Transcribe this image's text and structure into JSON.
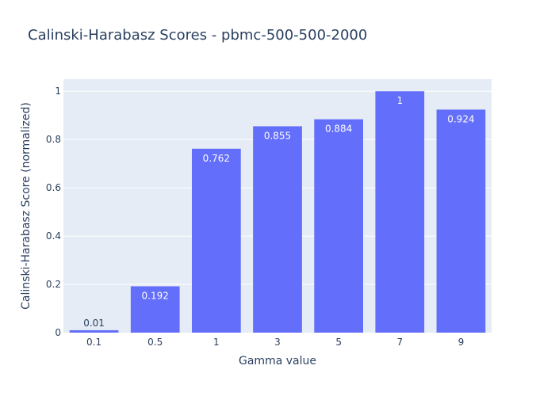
{
  "chart_data": {
    "type": "bar",
    "title": "Calinski-Harabasz Scores - pbmc-500-500-2000",
    "xlabel": "Gamma value",
    "ylabel": "Calinski-Harabasz Score (normalized)",
    "categories": [
      "0.1",
      "0.5",
      "1",
      "3",
      "5",
      "7",
      "9"
    ],
    "values": [
      0.01,
      0.192,
      0.762,
      0.855,
      0.884,
      1,
      0.924
    ],
    "value_labels": [
      "0.01",
      "0.192",
      "0.762",
      "0.855",
      "0.884",
      "1",
      "0.924"
    ],
    "ylim": [
      0,
      1.05
    ],
    "yticks": [
      0,
      0.2,
      0.4,
      0.6,
      0.8,
      1
    ],
    "ytick_labels": [
      "0",
      "0.2",
      "0.4",
      "0.6",
      "0.8",
      "1"
    ],
    "grid": true,
    "legend": "none",
    "colors": {
      "bar": "#636efa",
      "plot_background": "#e5ecf6",
      "grid": "#ffffff",
      "text": "#2a3f5f",
      "label_inside": "#ffffff"
    }
  }
}
